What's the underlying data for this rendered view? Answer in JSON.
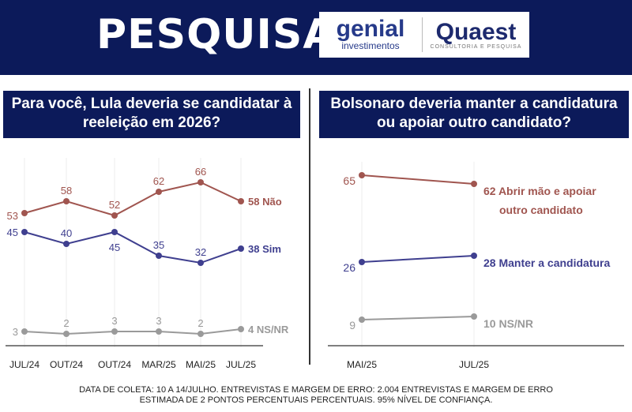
{
  "header": {
    "title": "PESQUISA",
    "logo_genial": "genial",
    "logo_genial_sub": "investimentos",
    "logo_quaest": "Quaest",
    "logo_quaest_sub": "CONSULTORIA E PESQUISA"
  },
  "colors": {
    "nao": "#a0554f",
    "sim": "#3f3f8f",
    "nsnr": "#9a9a9a",
    "navy": "#0c1a5a"
  },
  "chart_data": [
    {
      "type": "line",
      "title": "Para você, Lula deveria se candidatar à reeleição em 2026?",
      "categories": [
        "JUL/24",
        "OUT/24",
        "OUT/24",
        "MAR/25",
        "MAI/25",
        "JUL/25"
      ],
      "series": [
        {
          "name": "Não",
          "values": [
            53,
            58,
            52,
            62,
            66,
            58
          ],
          "end_label": "58 Não",
          "color": "#a0554f"
        },
        {
          "name": "Sim",
          "values": [
            45,
            40,
            45,
            35,
            32,
            38
          ],
          "end_label": "38 Sim",
          "color": "#3f3f8f"
        },
        {
          "name": "NS/NR",
          "values": [
            3,
            2,
            3,
            3,
            2,
            4
          ],
          "end_label": "4 NS/NR",
          "color": "#9a9a9a"
        }
      ]
    },
    {
      "type": "line",
      "title": "Bolsonaro deveria manter a candidatura ou apoiar outro candidato?",
      "categories": [
        "MAI/25",
        "JUL/25"
      ],
      "series": [
        {
          "name": "Abrir mão e apoiar outro candidato",
          "values": [
            65,
            62
          ],
          "end_label": [
            "62 Abrir mão e apoiar",
            "outro candidato"
          ],
          "color": "#a0554f"
        },
        {
          "name": "Manter a candidatura",
          "values": [
            26,
            28
          ],
          "end_label": [
            "28 Manter a candidatura"
          ],
          "color": "#3f3f8f"
        },
        {
          "name": "NS/NR",
          "values": [
            9,
            10
          ],
          "end_label": [
            "10 NS/NR"
          ],
          "color": "#9a9a9a"
        }
      ]
    }
  ],
  "footer": [
    "DATA DE COLETA: 10 A 14/JULHO. ENTREVISTAS E MARGEM DE ERRO: 2.004 ENTREVISTAS E MARGEM DE ERRO",
    "ESTIMADA DE 2 PONTOS PERCENTUAIS PERCENTUAIS. 95% NÍVEL DE CONFIANÇA."
  ]
}
